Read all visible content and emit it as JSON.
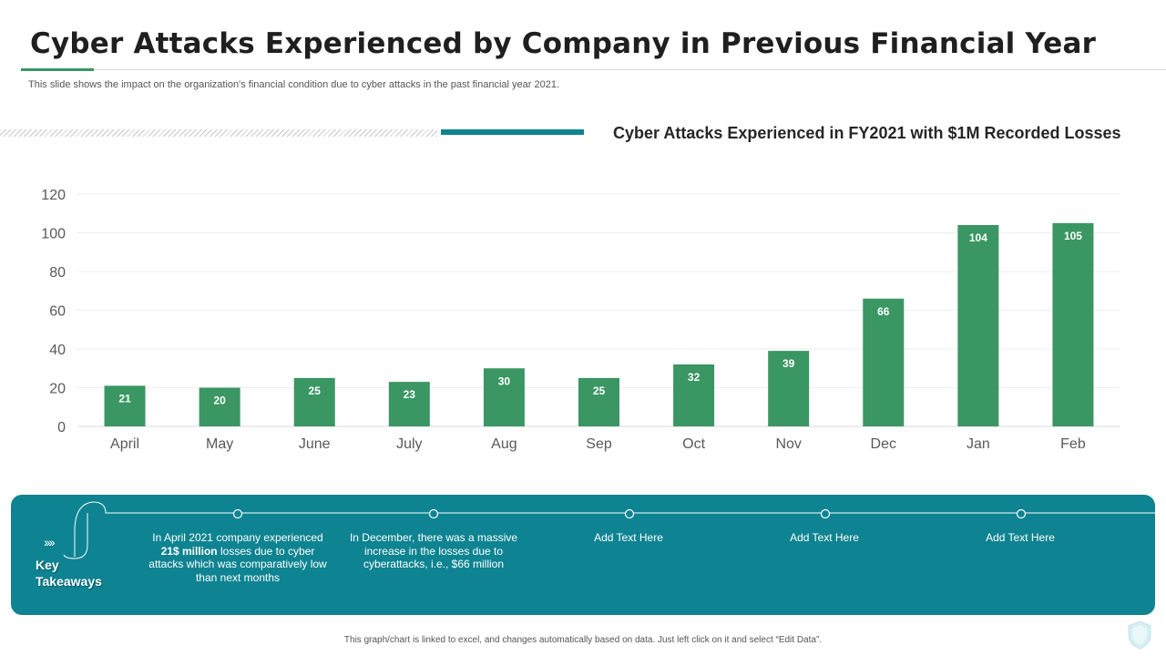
{
  "header": {
    "title": "Cyber Attacks Experienced by Company in Previous Financial Year",
    "subtitle": "This slide shows the impact on the organization's financial condition due to cyber attacks in the past financial year 2021."
  },
  "colors": {
    "bar": "#3a9663",
    "accent": "#0e8391",
    "panel": "#0e8391"
  },
  "chart_data": {
    "type": "bar",
    "title": "Cyber Attacks Experienced in FY2021 with $1M Recorded Losses",
    "categories": [
      "April",
      "May",
      "June",
      "July",
      "Aug",
      "Sep",
      "Oct",
      "Nov",
      "Dec",
      "Jan",
      "Feb"
    ],
    "values": [
      21,
      20,
      25,
      23,
      30,
      25,
      32,
      39,
      66,
      104,
      105
    ],
    "ylim": [
      0,
      120
    ],
    "yticks": [
      0,
      20,
      40,
      60,
      80,
      100,
      120
    ],
    "grid": true,
    "data_labels": true,
    "xlabel": "",
    "ylabel": ""
  },
  "takeaways": {
    "label_line1": "Key",
    "label_line2": "Takeaways",
    "items": [
      {
        "pre": "In April 2021 company experienced ",
        "bold": "21$ million",
        "post": " losses due to cyber attacks which was comparatively low than next months"
      },
      {
        "pre": "In December, there was a massive increase in the losses due to cyberattacks, i.e., $66 million",
        "bold": "",
        "post": ""
      },
      {
        "pre": "Add Text Here",
        "bold": "",
        "post": ""
      },
      {
        "pre": "Add Text Here",
        "bold": "",
        "post": ""
      },
      {
        "pre": "Add Text Here",
        "bold": "",
        "post": ""
      }
    ]
  },
  "footer": {
    "note": "This graph/chart is linked to excel, and changes automatically based on data. Just left click on it and select “Edit Data”."
  },
  "icons": {
    "arrows": "chevron-right-icon",
    "shield": "shield-icon"
  }
}
